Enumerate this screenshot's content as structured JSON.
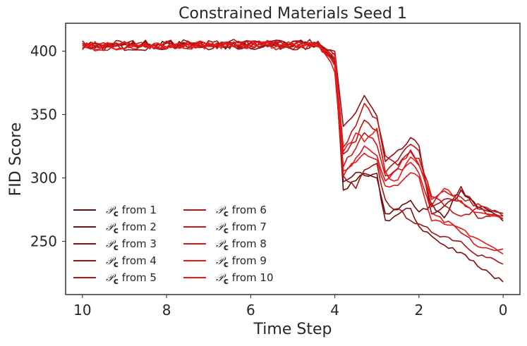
{
  "chart_data": {
    "type": "line",
    "title": "Constrained Materials Seed 1",
    "xlabel": "Time Step",
    "ylabel": "FID Score",
    "xlim": [
      10.4,
      -0.4
    ],
    "ylim": [
      208,
      422
    ],
    "x_ticks": [
      10,
      8,
      6,
      4,
      2,
      0
    ],
    "x_tick_labels": [
      "10",
      "8",
      "6",
      "4",
      "2",
      "0"
    ],
    "y_ticks": [
      250,
      300,
      350,
      400
    ],
    "y_tick_labels": [
      "250",
      "300",
      "350",
      "400"
    ],
    "grid": false,
    "legend_position": "lower-left",
    "legend_columns": 2,
    "legend_symbol": "𝒫",
    "legend_subscript": "c",
    "x_values": [
      10,
      4.4,
      4.0,
      3.8,
      3.5,
      3.3,
      3.0,
      2.8,
      2.5,
      2.2,
      2.0,
      1.7,
      1.4,
      1.0,
      0.6,
      0
    ],
    "series": [
      {
        "name": "from 1",
        "color": "#6b0a0a",
        "values": [
          404,
          405,
          395,
          290,
          298,
          303,
          300,
          270,
          276,
          283,
          272,
          279,
          270,
          290,
          278,
          266
        ]
      },
      {
        "name": "from 2",
        "color": "#7d0c0c",
        "values": [
          405,
          406,
          392,
          296,
          305,
          300,
          302,
          266,
          271,
          276,
          262,
          254,
          246,
          242,
          231,
          218
        ]
      },
      {
        "name": "from 3",
        "color": "#900f0f",
        "values": [
          403,
          404,
          398,
          340,
          352,
          365,
          348,
          312,
          320,
          330,
          326,
          270,
          276,
          292,
          275,
          272
        ]
      },
      {
        "name": "from 4",
        "color": "#a21111",
        "values": [
          406,
          407,
          390,
          300,
          292,
          305,
          310,
          282,
          274,
          268,
          262,
          258,
          254,
          250,
          240,
          232
        ]
      },
      {
        "name": "from 5",
        "color": "#b31313",
        "values": [
          404,
          405,
          396,
          318,
          330,
          345,
          336,
          306,
          316,
          326,
          320,
          277,
          283,
          282,
          269,
          270
        ]
      },
      {
        "name": "from 6",
        "color": "#c01414",
        "values": [
          405,
          406,
          394,
          325,
          341,
          358,
          346,
          316,
          311,
          321,
          314,
          286,
          278,
          270,
          276,
          268
        ]
      },
      {
        "name": "from 7",
        "color": "#cc1515",
        "values": [
          404,
          405,
          388,
          310,
          324,
          336,
          326,
          301,
          309,
          320,
          312,
          280,
          290,
          285,
          278,
          270
        ]
      },
      {
        "name": "from 8",
        "color": "#da1616",
        "values": [
          403,
          404,
          385,
          302,
          316,
          326,
          318,
          298,
          306,
          312,
          305,
          274,
          266,
          258,
          246,
          244
        ]
      },
      {
        "name": "from 9",
        "color": "#e61717",
        "values": [
          405,
          406,
          391,
          307,
          312,
          318,
          313,
          292,
          296,
          306,
          300,
          268,
          262,
          260,
          252,
          240
        ]
      },
      {
        "name": "from 10",
        "color": "#f21818",
        "values": [
          404,
          405,
          397,
          320,
          335,
          330,
          338,
          303,
          297,
          318,
          310,
          284,
          292,
          279,
          272,
          268
        ]
      }
    ]
  }
}
